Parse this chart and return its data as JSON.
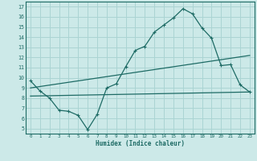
{
  "xlabel": "Humidex (Indice chaleur)",
  "ylabel": "",
  "background_color": "#cce9e8",
  "grid_color": "#aad4d3",
  "line_color": "#1e6b65",
  "xlim": [
    -0.5,
    23.5
  ],
  "ylim": [
    4.5,
    17.5
  ],
  "xticks": [
    0,
    1,
    2,
    3,
    4,
    5,
    6,
    7,
    8,
    9,
    10,
    11,
    12,
    13,
    14,
    15,
    16,
    17,
    18,
    19,
    20,
    21,
    22,
    23
  ],
  "yticks": [
    5,
    6,
    7,
    8,
    9,
    10,
    11,
    12,
    13,
    14,
    15,
    16,
    17
  ],
  "line1_x": [
    0,
    1,
    2,
    3,
    4,
    5,
    6,
    7,
    8,
    9,
    10,
    11,
    12,
    13,
    14,
    15,
    16,
    17,
    18,
    19,
    20,
    21,
    22,
    23
  ],
  "line1_y": [
    9.7,
    8.7,
    8.0,
    6.8,
    6.7,
    6.3,
    4.9,
    6.4,
    9.0,
    9.4,
    11.1,
    12.7,
    13.1,
    14.5,
    15.2,
    15.9,
    16.8,
    16.3,
    14.9,
    13.9,
    11.2,
    11.3,
    9.3,
    8.6
  ],
  "line2_x": [
    0,
    23
  ],
  "line2_y": [
    9.0,
    12.2
  ],
  "line3_x": [
    0,
    23
  ],
  "line3_y": [
    8.2,
    8.6
  ]
}
